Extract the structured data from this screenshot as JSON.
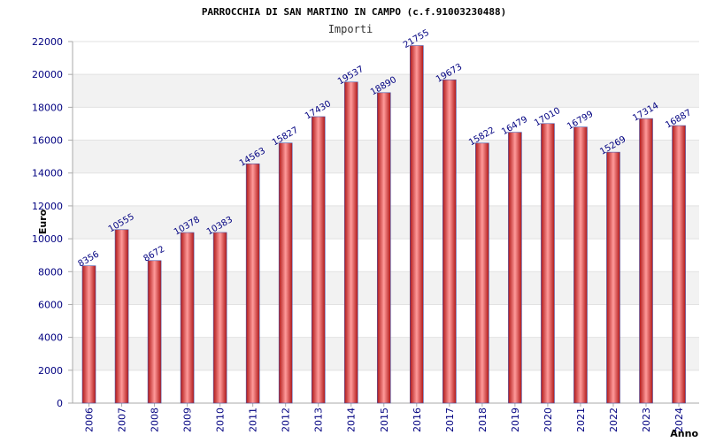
{
  "chart_data": {
    "type": "bar",
    "title": "PARROCCHIA DI SAN MARTINO IN CAMPO (c.f.91003230488)",
    "subtitle": "Importi",
    "xlabel": "Anno",
    "ylabel": "Euro",
    "ylim": [
      0,
      22000
    ],
    "yticks": [
      0,
      2000,
      4000,
      6000,
      8000,
      10000,
      12000,
      14000,
      16000,
      18000,
      20000,
      22000
    ],
    "grid": true,
    "categories": [
      "2006",
      "2007",
      "2008",
      "2009",
      "2010",
      "2011",
      "2012",
      "2013",
      "2014",
      "2015",
      "2016",
      "2017",
      "2018",
      "2019",
      "2020",
      "2021",
      "2022",
      "2023",
      "2024"
    ],
    "values": [
      8356,
      10555,
      8672,
      10378,
      10383,
      14563,
      15827,
      17430,
      19537,
      18890,
      21755,
      19673,
      15822,
      16479,
      17010,
      16799,
      15269,
      17314,
      16887
    ],
    "colors": {
      "bar_dark": "#b01818",
      "bar_light": "#ff9a9a",
      "bar_edge": "#4b55a8",
      "band": "#f2f2f2",
      "axis": "#aaaaaa",
      "tick_text": "#000080"
    }
  }
}
